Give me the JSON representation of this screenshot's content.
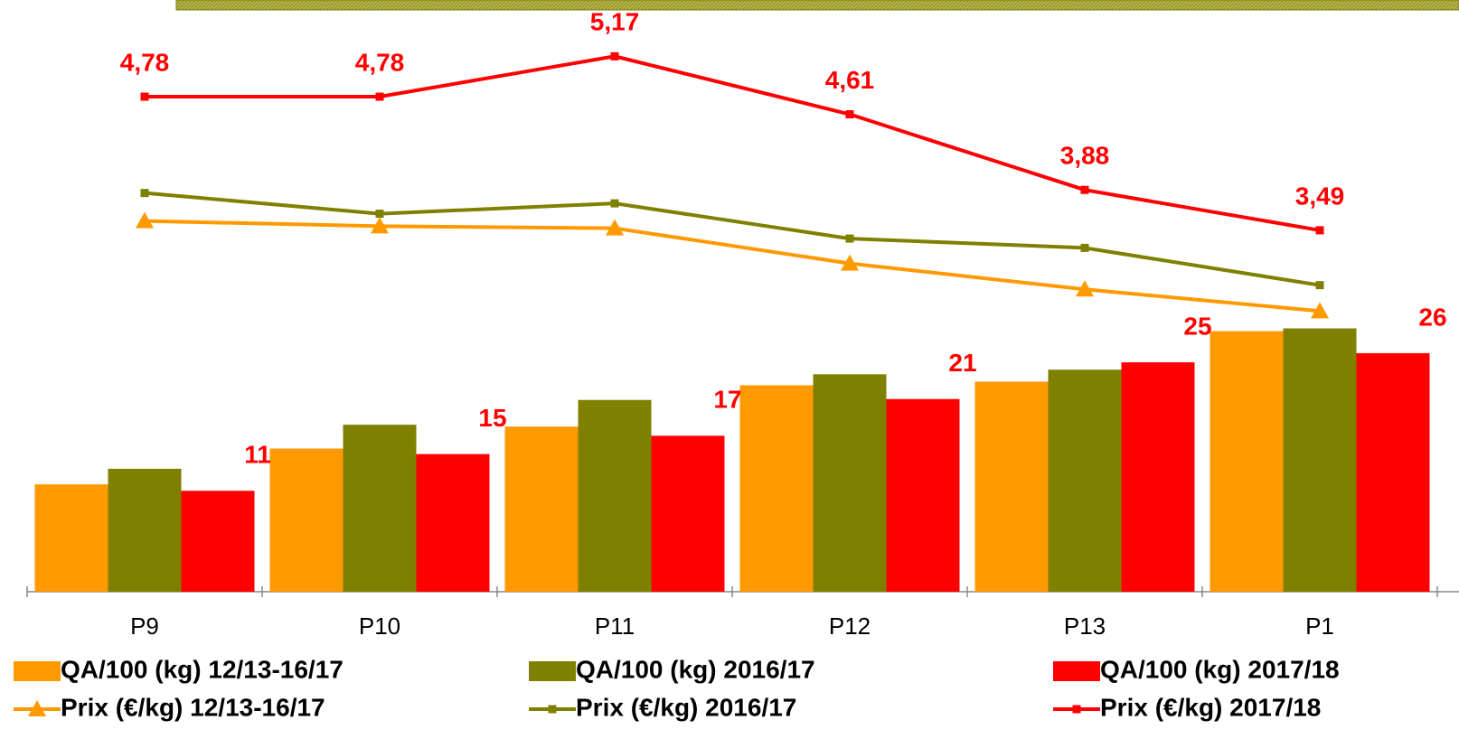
{
  "chart_data": {
    "type": "combo",
    "categories": [
      "P9",
      "P10",
      "P11",
      "P12",
      "P13",
      "P1"
    ],
    "ylim": [
      0,
      64
    ],
    "y2lim": [
      0,
      5.67
    ],
    "series": [
      {
        "name": "QA/100 (kg) 12/13-16/17",
        "type": "bar",
        "color": "#ff9900",
        "values": [
          11.7,
          15.6,
          18.0,
          22.5,
          22.9,
          28.4
        ]
      },
      {
        "name": "QA/100 (kg) 2016/17",
        "type": "bar",
        "color": "#808000",
        "values": [
          13.4,
          18.2,
          20.9,
          23.7,
          24.2,
          28.7
        ]
      },
      {
        "name": "QA/100 (kg) 2017/18",
        "type": "bar",
        "color": "#ff0000",
        "values": [
          11,
          15,
          17,
          21,
          25,
          26
        ],
        "show_labels": true
      },
      {
        "name": "Prix (€/kg) 12/13-16/17",
        "type": "line",
        "axis": "y2",
        "marker": "triangle",
        "color": "#ff9900",
        "values": [
          3.58,
          3.53,
          3.51,
          3.17,
          2.92,
          2.71
        ]
      },
      {
        "name": "Prix (€/kg) 2016/17",
        "type": "line",
        "axis": "y2",
        "marker": "square",
        "color": "#808000",
        "values": [
          3.85,
          3.65,
          3.75,
          3.41,
          3.32,
          2.96
        ]
      },
      {
        "name": "Prix (€/kg) 2017/18",
        "type": "line",
        "axis": "y2",
        "marker": "square",
        "color": "#ff0000",
        "values": [
          4.78,
          4.78,
          5.17,
          4.61,
          3.88,
          3.49
        ],
        "value_labels": [
          "4,78",
          "4,78",
          "5,17",
          "4,61",
          "3,88",
          "3,49"
        ],
        "show_labels": true
      }
    ]
  }
}
